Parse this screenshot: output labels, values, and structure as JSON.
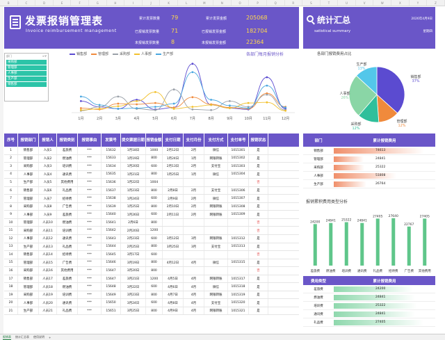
{
  "header": {
    "title_cn": "发票报销管理表",
    "title_en": "Invoice reimbursement management",
    "stats": [
      {
        "label": "累计发票数量",
        "value": "79"
      },
      {
        "label": "已报销发票数量",
        "value": "71"
      },
      {
        "label": "未报销发票数量",
        "value": "8"
      },
      {
        "label": "累计发票金额",
        "value": "205068"
      },
      {
        "label": "已报销发票金额",
        "value": "182704"
      },
      {
        "label": "未报销发票金额",
        "value": "22364"
      }
    ]
  },
  "summary": {
    "title": "统计汇总",
    "subtitle": "satistical summary",
    "date": "2026年4月9日",
    "weekday": "星期四"
  },
  "columns": [
    "B",
    "C",
    "D",
    "E",
    "F",
    "G",
    "H",
    "I",
    "J",
    "K",
    "L",
    "M",
    "N",
    "O",
    "P",
    "Q",
    "R",
    "S",
    "T",
    "U",
    "V",
    "W",
    "X",
    "Y",
    "Z"
  ],
  "filter": {
    "title": "部门",
    "items": [
      "采购部",
      "管理部",
      "人事部",
      "生产部",
      "销售部"
    ]
  },
  "line_chart": {
    "title": "各部门每月报销分析",
    "legend": [
      {
        "name": "销售部",
        "color": "#5b4bd0"
      },
      {
        "name": "管理部",
        "color": "#f08a3c"
      },
      {
        "name": "采购部",
        "color": "#9aa0a8"
      },
      {
        "name": "人事部",
        "color": "#f2c12e"
      },
      {
        "name": "生产部",
        "color": "#4aa7e0"
      }
    ]
  },
  "chart_data": [
    {
      "type": "line",
      "title": "各部门每月报销分析",
      "x": [
        "1月",
        "2月",
        "3月",
        "4月",
        "5月",
        "6月",
        "7月",
        "8月",
        "9月",
        "10月",
        "11月",
        "12月"
      ],
      "series": [
        {
          "name": "销售部",
          "values": [
            1800,
            900,
            600,
            2000,
            500,
            800,
            7600,
            1200,
            700,
            500,
            5500,
            600
          ]
        },
        {
          "name": "管理部",
          "values": [
            700,
            500,
            1400,
            1300,
            1500,
            800,
            2400,
            1300,
            800,
            600,
            3000,
            900
          ]
        },
        {
          "name": "采购部",
          "values": [
            300,
            900,
            2500,
            600,
            400,
            3600,
            500,
            400,
            1800,
            900,
            2800,
            400
          ]
        },
        {
          "name": "人事部",
          "values": [
            400,
            600,
            1000,
            1800,
            3200,
            600,
            900,
            1200,
            700,
            1500,
            1600,
            300
          ]
        },
        {
          "name": "生产部",
          "values": [
            2500,
            1200,
            600,
            700,
            900,
            1400,
            6300,
            2000,
            1100,
            700,
            4200,
            800
          ]
        }
      ],
      "ylim": [
        0,
        8000
      ]
    },
    {
      "type": "pie",
      "title": "各部门报销费用占比",
      "categories": [
        "销售部",
        "管理部",
        "采购部",
        "人事部",
        "生产部"
      ],
      "values": [
        74613,
        24841,
        25322,
        51808,
        26764
      ],
      "labels": [
        "销售部\n37%",
        "管理部\n12%",
        "采购部\n12%",
        "人事部\n26%",
        "生产部\n13%"
      ]
    },
    {
      "type": "bar",
      "title": "报销累积费用类型分析",
      "categories": [
        "差旅费",
        "燃油费",
        "培训费",
        "通讯费",
        "礼品费",
        "招待费",
        "广告费",
        "其他费用"
      ],
      "values": [
        24200,
        24841,
        25322,
        24841,
        27405,
        27640,
        22767,
        27405
      ]
    }
  ],
  "pie_title": "各部门报销费用占比",
  "type_chart_title": "报销累积费用类型分析",
  "main_table": {
    "headers": [
      "序号",
      "报销部门",
      "报销人",
      "报销类别",
      "报销事由",
      "发票号",
      "提交票据日期",
      "报销金额",
      "支付日期",
      "支付月份",
      "支付方式",
      "支付单号",
      "报销状态"
    ],
    "rows": [
      [
        "1",
        "销售部",
        "人员1",
        "差旅费",
        "***",
        "15632",
        "1月18日",
        "1000",
        "2月12日",
        "2月",
        "微信",
        "1015301",
        "是"
      ],
      [
        "2",
        "管理部",
        "人员2",
        "燃油费",
        "***",
        "15633",
        "1月19日",
        "800",
        "1月24日",
        "1月",
        "网银转账",
        "1015302",
        "是"
      ],
      [
        "3",
        "采购部",
        "人员3",
        "培训费",
        "***",
        "15634",
        "1月20日",
        "600",
        "2月13日",
        "2月",
        "支付宝",
        "1015303",
        "是"
      ],
      [
        "4",
        "人事部",
        "人员4",
        "通讯费",
        "***",
        "15635",
        "1月21日",
        "800",
        "1月25日",
        "1月",
        "微信",
        "1015304",
        "是"
      ],
      [
        "5",
        "生产部",
        "人员5",
        "其他费用",
        "***",
        "15636",
        "1月22日",
        "1004",
        "",
        "",
        "",
        "",
        "否"
      ],
      [
        "6",
        "销售部",
        "人员6",
        "礼品费",
        "***",
        "15637",
        "1月23日",
        "800",
        "2月8日",
        "2月",
        "支付宝",
        "1015306",
        "是"
      ],
      [
        "7",
        "管理部",
        "人员7",
        "招待费",
        "***",
        "15638",
        "1月24日",
        "600",
        "2月9日",
        "2月",
        "微信",
        "1015307",
        "是"
      ],
      [
        "8",
        "采购部",
        "人员8",
        "广告费",
        "***",
        "15639",
        "1月25日",
        "800",
        "2月10日",
        "2月",
        "网银转账",
        "1015308",
        "是"
      ],
      [
        "9",
        "人事部",
        "人员9",
        "差旅费",
        "***",
        "15640",
        "1月26日",
        "600",
        "2月11日",
        "2月",
        "网银转账",
        "1015309",
        "是"
      ],
      [
        "10",
        "管理部",
        "人员10",
        "燃油费",
        "***",
        "15641",
        "2月6日",
        "800",
        "",
        "",
        "",
        "",
        "否"
      ],
      [
        "11",
        "采购部",
        "人员11",
        "培训费",
        "***",
        "15642",
        "2月20日",
        "1200",
        "",
        "",
        "",
        "",
        "否"
      ],
      [
        "12",
        "人事部",
        "人员12",
        "通讯费",
        "***",
        "15643",
        "2月23日",
        "600",
        "3月12日",
        "3月",
        "网银转账",
        "1015312",
        "是"
      ],
      [
        "13",
        "生产部",
        "人员13",
        "礼品费",
        "***",
        "15644",
        "2月25日",
        "800",
        "3月25日",
        "3月",
        "支付宝",
        "1015313",
        "是"
      ],
      [
        "14",
        "销售部",
        "人员14",
        "招待费",
        "***",
        "15645",
        "3月17日",
        "600",
        "",
        "",
        "",
        "",
        "否"
      ],
      [
        "15",
        "管理部",
        "人员15",
        "广告费",
        "***",
        "15646",
        "3月19日",
        "800",
        "4月12日",
        "4月",
        "微信",
        "1015315",
        "是"
      ],
      [
        "16",
        "采购部",
        "人员16",
        "其他费用",
        "***",
        "15647",
        "3月20日",
        "800",
        "",
        "",
        "",
        "",
        "否"
      ],
      [
        "17",
        "销售部",
        "人员17",
        "差旅费",
        "***",
        "15647",
        "3月21日",
        "1200",
        "4月5日",
        "4月",
        "网银转账",
        "1015317",
        "是"
      ],
      [
        "18",
        "管理部",
        "人员18",
        "燃油费",
        "***",
        "15648",
        "3月22日",
        "600",
        "4月6日",
        "4月",
        "微信",
        "1015318",
        "是"
      ],
      [
        "19",
        "采购部",
        "人员19",
        "培训费",
        "***",
        "15649",
        "3月23日",
        "800",
        "4月7日",
        "4月",
        "网银转账",
        "1015319",
        "是"
      ],
      [
        "20",
        "人事部",
        "人员20",
        "通讯费",
        "***",
        "15650",
        "3月24日",
        "600",
        "4月8日",
        "4月",
        "支付宝",
        "1015320",
        "是"
      ],
      [
        "21",
        "生产部",
        "人员21",
        "礼品费",
        "***",
        "15651",
        "3月25日",
        "800",
        "4月9日",
        "4月",
        "网银转账",
        "1015321",
        "是"
      ]
    ]
  },
  "dept_table": {
    "headers": [
      "部门",
      "累计报销费用"
    ],
    "rows": [
      {
        "name": "销售部",
        "value": "74613",
        "fraction": 1.0
      },
      {
        "name": "管理部",
        "value": "24841",
        "fraction": 0.33
      },
      {
        "name": "采购部",
        "value": "25322",
        "fraction": 0.34
      },
      {
        "name": "人事部",
        "value": "51808",
        "fraction": 0.69
      },
      {
        "name": "生产部",
        "value": "26764",
        "fraction": 0.36
      }
    ]
  },
  "type_table": {
    "headers": [
      "费用类型",
      "累计报销费用"
    ],
    "rows": [
      {
        "name": "差旅费",
        "value": "24200",
        "fraction": 0.88
      },
      {
        "name": "燃油费",
        "value": "24841",
        "fraction": 0.9
      },
      {
        "name": "培训费",
        "value": "25322",
        "fraction": 0.92
      },
      {
        "name": "通讯费",
        "value": "24841",
        "fraction": 0.9
      },
      {
        "name": "礼品费",
        "value": "27405",
        "fraction": 0.99
      }
    ]
  },
  "tabs": [
    "报销表",
    "统计汇总表",
    "使用说明",
    "+"
  ]
}
